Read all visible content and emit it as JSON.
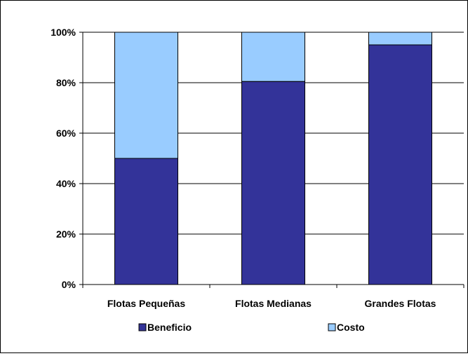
{
  "chart_data": {
    "type": "bar",
    "stacked": true,
    "categories": [
      "Flotas Pequeñas",
      "Flotas Medianas",
      "Grandes Flotas"
    ],
    "series": [
      {
        "name": "Beneficio",
        "values": [
          50,
          80.5,
          95
        ],
        "color": "#333399"
      },
      {
        "name": "Costo",
        "values": [
          50,
          19.5,
          5
        ],
        "color": "#99CCFF"
      }
    ],
    "y_ticks": [
      "0%",
      "20%",
      "40%",
      "60%",
      "80%",
      "100%"
    ],
    "ylim": [
      0,
      100
    ],
    "grid": true,
    "legend": "bottom"
  }
}
